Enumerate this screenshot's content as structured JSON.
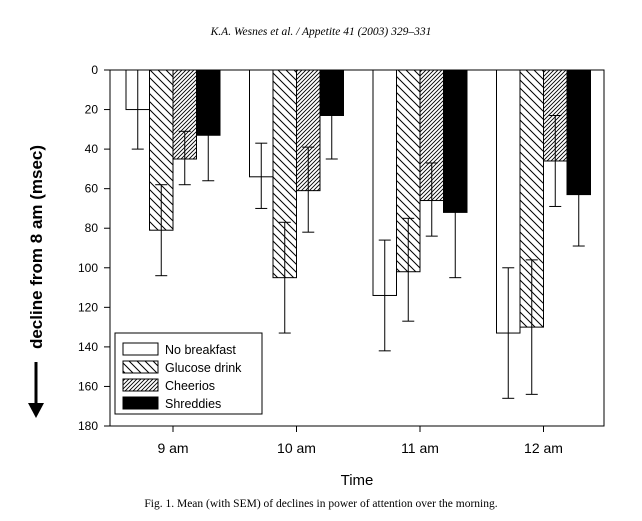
{
  "header": {
    "text": "K.A. Wesnes et al. / Appetite 41 (2003) 329–331"
  },
  "caption": {
    "text": "Fig. 1. Mean (with SEM) of declines in power of attention over the morning."
  },
  "chart_data": {
    "type": "bar",
    "title": "",
    "xlabel": "Time",
    "ylabel": "decline from 8 am (msec)",
    "ylim": [
      0,
      180
    ],
    "y_inverted": true,
    "yticks": [
      0,
      20,
      40,
      60,
      80,
      100,
      120,
      140,
      160,
      180
    ],
    "categories": [
      "9 am",
      "10 am",
      "11 am",
      "12 am"
    ],
    "legend_position": "bottom-left",
    "series": [
      {
        "name": "No breakfast",
        "pattern": "open",
        "color": "#ffffff",
        "values": [
          20,
          54,
          114,
          133
        ],
        "err_low": [
          0,
          37,
          86,
          100
        ],
        "err_high": [
          40,
          70,
          142,
          166
        ]
      },
      {
        "name": "Glucose drink",
        "pattern": "backslash-hatch",
        "color": "#ffffff",
        "values": [
          81,
          105,
          102,
          130
        ],
        "err_low": [
          58,
          77,
          75,
          96
        ],
        "err_high": [
          104,
          133,
          127,
          164
        ]
      },
      {
        "name": "Cheerios",
        "pattern": "dense-slash-hatch",
        "color": "#ffffff",
        "values": [
          45,
          61,
          66,
          46
        ],
        "err_low": [
          31,
          39,
          47,
          23
        ],
        "err_high": [
          58,
          82,
          84,
          69
        ]
      },
      {
        "name": "Shreddies",
        "pattern": "solid",
        "color": "#000000",
        "values": [
          33,
          23,
          72,
          63
        ],
        "err_low": [
          11,
          0,
          0,
          0
        ],
        "err_high": [
          56,
          45,
          105,
          89
        ]
      }
    ]
  }
}
